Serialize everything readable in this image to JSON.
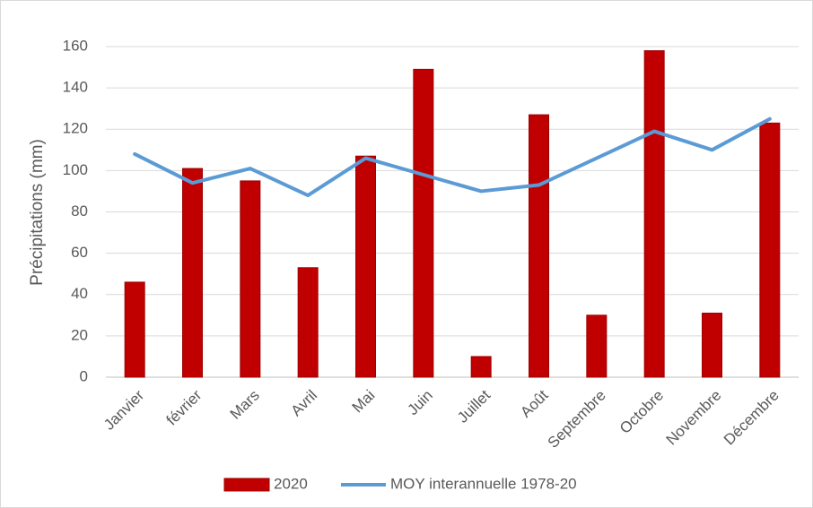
{
  "chart_data": {
    "type": "bar",
    "y_label": "Précipitations (mm)",
    "categories": [
      "Janvier",
      "février",
      "Mars",
      "Avril",
      "Mai",
      "Juin",
      "Juillet",
      "Août",
      "Septembre",
      "Octobre",
      "Novembre",
      "Décembre"
    ],
    "series": [
      {
        "name": "2020",
        "type": "bar",
        "color": "#c00000",
        "values": [
          46,
          101,
          95,
          53,
          107,
          149,
          10,
          127,
          30,
          158,
          31,
          123
        ]
      },
      {
        "name": "MOY interannuelle 1978-20",
        "type": "line",
        "color": "#5b9bd5",
        "values": [
          108,
          94,
          101,
          88,
          106,
          98,
          90,
          93,
          106,
          119,
          110,
          125
        ]
      }
    ],
    "ylim": [
      0,
      160
    ],
    "yticks": [
      0,
      20,
      40,
      60,
      80,
      100,
      120,
      140,
      160
    ],
    "grid": true,
    "legend": "bottom"
  }
}
